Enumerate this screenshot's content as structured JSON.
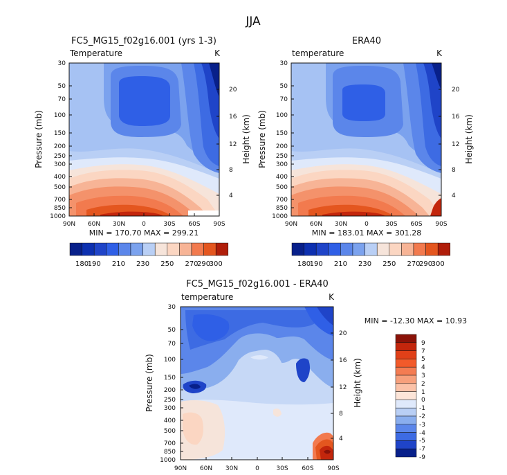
{
  "figure_title": "JJA",
  "colors": {
    "cold_deep": "#08208a",
    "cold": "#2f5fe6",
    "cold_light": "#b9cff5",
    "neutral": "#f0f4fb",
    "warm_light": "#fbd6c2",
    "warm": "#f27a4e",
    "warm_deep": "#c3260c"
  },
  "chart_data": [
    {
      "id": "model",
      "type": "heatmap",
      "title": "FC5_MG15_f02g16.001 (yrs 1-3)",
      "field_label": "Temperature",
      "units": "K",
      "ylabel": "Pressure (mb)",
      "y2label": "Height (km)",
      "x_ticks": [
        "90N",
        "60N",
        "30N",
        "0",
        "30S",
        "60S",
        "90S"
      ],
      "y_ticks": [
        "30",
        "50",
        "70",
        "100",
        "150",
        "200",
        "250",
        "300",
        "400",
        "500",
        "700",
        "850",
        "1000"
      ],
      "y2_ticks": [
        "20",
        "16",
        "12",
        "8",
        "4"
      ],
      "stats": "MIN = 170.70   MAX = 299.21",
      "colorbar_ticks": [
        "180",
        "190",
        "200",
        "210",
        "220",
        "230",
        "240",
        "250",
        "260",
        "270",
        "280",
        "290",
        "300"
      ],
      "colorbar_labels": [
        "180",
        "190",
        "210",
        "230",
        "250",
        "270",
        "290",
        "300"
      ]
    },
    {
      "id": "obs",
      "type": "heatmap",
      "title": "ERA40",
      "field_label": "temperature",
      "units": "K",
      "ylabel": "Pressure (mb)",
      "y2label": "Height (km)",
      "x_ticks": [
        "90N",
        "60N",
        "30N",
        "0",
        "30S",
        "60S",
        "90S"
      ],
      "y_ticks": [
        "30",
        "50",
        "70",
        "100",
        "150",
        "200",
        "250",
        "300",
        "400",
        "500",
        "700",
        "850",
        "1000"
      ],
      "y2_ticks": [
        "20",
        "16",
        "12",
        "8",
        "4"
      ],
      "stats": "MIN = 183.01   MAX = 301.28",
      "colorbar_labels": [
        "180",
        "190",
        "210",
        "230",
        "250",
        "270",
        "290",
        "300"
      ]
    },
    {
      "id": "diff",
      "type": "heatmap",
      "title": "FC5_MG15_f02g16.001 - ERA40",
      "field_label": "temperature",
      "units": "K",
      "ylabel": "Pressure (mb)",
      "y2label": "Height (km)",
      "x_ticks": [
        "90N",
        "60N",
        "30N",
        "0",
        "30S",
        "60S",
        "90S"
      ],
      "y_ticks": [
        "30",
        "50",
        "70",
        "100",
        "150",
        "200",
        "250",
        "300",
        "400",
        "500",
        "700",
        "850",
        "1000"
      ],
      "y2_ticks": [
        "20",
        "16",
        "12",
        "8",
        "4"
      ],
      "stats": "MIN = -12.30   MAX =  10.93",
      "colorbar_labels": [
        "9",
        "7",
        "5",
        "4",
        "3",
        "2",
        "1",
        "0",
        "-1",
        "-2",
        "-3",
        "-4",
        "-5",
        "-7",
        "-9"
      ]
    }
  ]
}
